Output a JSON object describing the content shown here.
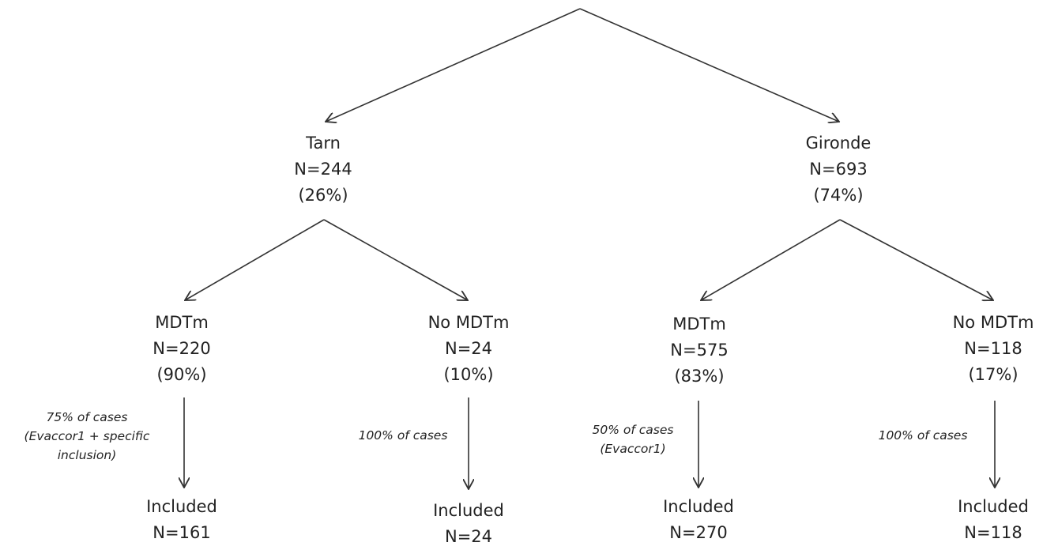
{
  "level1": {
    "tarn": {
      "name": "Tarn",
      "n": "N=244",
      "pct": "(26%)"
    },
    "gironde": {
      "name": "Gironde",
      "n": "N=693",
      "pct": "(74%)"
    }
  },
  "level2": {
    "tarn_mdtm": {
      "name": "MDTm",
      "n": "N=220",
      "pct": "(90%)"
    },
    "tarn_no_mdtm": {
      "name": "No MDTm",
      "n": "N=24",
      "pct": "(10%)"
    },
    "gironde_mdtm": {
      "name": "MDTm",
      "n": "N=575",
      "pct": "(83%)"
    },
    "gironde_no_mdtm": {
      "name": "No MDTm",
      "n": "N=118",
      "pct": "(17%)"
    }
  },
  "level3": {
    "tarn_mdtm_incl": {
      "name": "Included",
      "n": "N=161"
    },
    "tarn_no_mdtm_incl": {
      "name": "Included",
      "n": "N=24"
    },
    "gironde_mdtm_incl": {
      "name": "Included",
      "n": "N=270"
    },
    "gironde_no_mdtm_incl": {
      "name": "Included",
      "n": "N=118"
    }
  },
  "notes": {
    "tarn_mdtm": [
      "75% of cases",
      "(Evaccor1 + specific",
      "inclusion)"
    ],
    "tarn_no_mdtm": [
      "100% of cases"
    ],
    "gironde_mdtm": [
      "50% of cases",
      "(Evaccor1)"
    ],
    "gironde_no_mdtm": [
      "100% of cases"
    ]
  },
  "colors": {
    "line": "#333333",
    "text": "#222222"
  }
}
